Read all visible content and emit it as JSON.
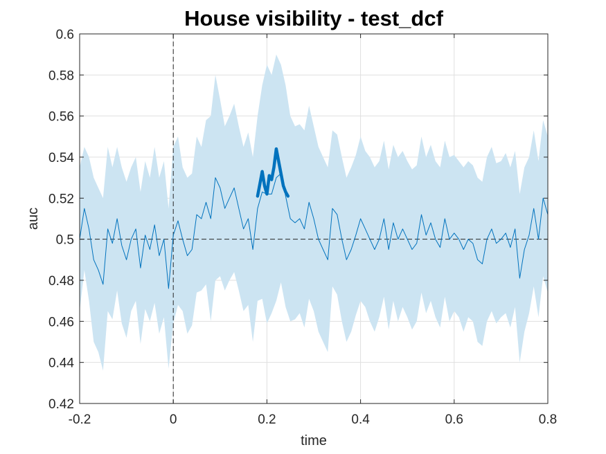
{
  "chart_data": {
    "type": "line",
    "title": "House visibility - test_dcf",
    "xlabel": "time",
    "ylabel": "auc",
    "xlim": [
      -0.2,
      0.8
    ],
    "ylim": [
      0.42,
      0.6
    ],
    "xticks": [
      "-0.2",
      "0",
      "0.2",
      "0.4",
      "0.6",
      "0.8"
    ],
    "yticks": [
      "0.42",
      "0.44",
      "0.46",
      "0.48",
      "0.5",
      "0.52",
      "0.54",
      "0.56",
      "0.58",
      "0.6"
    ],
    "grid": true,
    "reference_lines": {
      "chance_y": 0.5,
      "onset_x": 0
    },
    "colors": {
      "line": "#0072BD",
      "band": "#CCE4F2",
      "significant": "#0072BD",
      "reference": "#262626",
      "grid": "#DFDFDF"
    },
    "series": [
      {
        "role": "mean",
        "x": [
          -0.2,
          -0.19,
          -0.18,
          -0.17,
          -0.16,
          -0.15,
          -0.14,
          -0.13,
          -0.12,
          -0.11,
          -0.1,
          -0.09,
          -0.08,
          -0.07,
          -0.06,
          -0.05,
          -0.04,
          -0.03,
          -0.02,
          -0.01,
          0.0,
          0.01,
          0.02,
          0.03,
          0.04,
          0.05,
          0.06,
          0.07,
          0.08,
          0.09,
          0.1,
          0.11,
          0.12,
          0.13,
          0.14,
          0.15,
          0.16,
          0.17,
          0.18,
          0.19,
          0.2,
          0.21,
          0.22,
          0.23,
          0.24,
          0.25,
          0.26,
          0.27,
          0.28,
          0.29,
          0.3,
          0.31,
          0.32,
          0.33,
          0.34,
          0.35,
          0.36,
          0.37,
          0.38,
          0.39,
          0.4,
          0.41,
          0.42,
          0.43,
          0.44,
          0.45,
          0.46,
          0.47,
          0.48,
          0.49,
          0.5,
          0.51,
          0.52,
          0.53,
          0.54,
          0.55,
          0.56,
          0.57,
          0.58,
          0.59,
          0.6,
          0.61,
          0.62,
          0.63,
          0.64,
          0.65,
          0.66,
          0.67,
          0.68,
          0.69,
          0.7,
          0.71,
          0.72,
          0.73,
          0.74,
          0.75,
          0.76,
          0.77,
          0.78,
          0.79,
          0.8
        ],
        "y": [
          0.5,
          0.515,
          0.505,
          0.49,
          0.485,
          0.478,
          0.505,
          0.498,
          0.51,
          0.497,
          0.49,
          0.5,
          0.505,
          0.486,
          0.502,
          0.495,
          0.507,
          0.492,
          0.5,
          0.476,
          0.502,
          0.509,
          0.5,
          0.492,
          0.495,
          0.512,
          0.51,
          0.518,
          0.51,
          0.53,
          0.525,
          0.515,
          0.52,
          0.525,
          0.515,
          0.505,
          0.51,
          0.495,
          0.515,
          0.523,
          0.522,
          0.522,
          0.53,
          0.532,
          0.521,
          0.51,
          0.508,
          0.51,
          0.505,
          0.518,
          0.51,
          0.5,
          0.495,
          0.49,
          0.515,
          0.512,
          0.5,
          0.49,
          0.495,
          0.502,
          0.51,
          0.505,
          0.5,
          0.495,
          0.5,
          0.51,
          0.495,
          0.508,
          0.5,
          0.505,
          0.5,
          0.495,
          0.498,
          0.512,
          0.502,
          0.508,
          0.5,
          0.496,
          0.51,
          0.5,
          0.503,
          0.5,
          0.495,
          0.5,
          0.498,
          0.49,
          0.488,
          0.5,
          0.505,
          0.498,
          0.5,
          0.503,
          0.496,
          0.505,
          0.481,
          0.495,
          0.502,
          0.515,
          0.5,
          0.52,
          0.512
        ]
      },
      {
        "role": "confidence_band",
        "x": [
          -0.2,
          -0.19,
          -0.18,
          -0.17,
          -0.16,
          -0.15,
          -0.14,
          -0.13,
          -0.12,
          -0.11,
          -0.1,
          -0.09,
          -0.08,
          -0.07,
          -0.06,
          -0.05,
          -0.04,
          -0.03,
          -0.02,
          -0.01,
          0.0,
          0.01,
          0.02,
          0.03,
          0.04,
          0.05,
          0.06,
          0.07,
          0.08,
          0.09,
          0.1,
          0.11,
          0.12,
          0.13,
          0.14,
          0.15,
          0.16,
          0.17,
          0.18,
          0.19,
          0.2,
          0.21,
          0.22,
          0.23,
          0.24,
          0.25,
          0.26,
          0.27,
          0.28,
          0.29,
          0.3,
          0.31,
          0.32,
          0.33,
          0.34,
          0.35,
          0.36,
          0.37,
          0.38,
          0.39,
          0.4,
          0.41,
          0.42,
          0.43,
          0.44,
          0.45,
          0.46,
          0.47,
          0.48,
          0.49,
          0.5,
          0.51,
          0.52,
          0.53,
          0.54,
          0.55,
          0.56,
          0.57,
          0.58,
          0.59,
          0.6,
          0.61,
          0.62,
          0.63,
          0.64,
          0.65,
          0.66,
          0.67,
          0.68,
          0.69,
          0.7,
          0.71,
          0.72,
          0.73,
          0.74,
          0.75,
          0.76,
          0.77,
          0.78,
          0.79,
          0.8
        ],
        "upper": [
          0.535,
          0.545,
          0.54,
          0.53,
          0.525,
          0.52,
          0.545,
          0.535,
          0.545,
          0.535,
          0.528,
          0.535,
          0.54,
          0.523,
          0.538,
          0.53,
          0.545,
          0.53,
          0.538,
          0.515,
          0.545,
          0.55,
          0.535,
          0.53,
          0.532,
          0.55,
          0.545,
          0.558,
          0.56,
          0.58,
          0.568,
          0.555,
          0.56,
          0.566,
          0.555,
          0.545,
          0.552,
          0.54,
          0.56,
          0.575,
          0.585,
          0.58,
          0.59,
          0.585,
          0.575,
          0.56,
          0.555,
          0.556,
          0.553,
          0.565,
          0.555,
          0.545,
          0.54,
          0.535,
          0.553,
          0.551,
          0.54,
          0.53,
          0.535,
          0.541,
          0.55,
          0.543,
          0.54,
          0.535,
          0.538,
          0.548,
          0.534,
          0.546,
          0.54,
          0.543,
          0.538,
          0.534,
          0.536,
          0.55,
          0.54,
          0.546,
          0.538,
          0.535,
          0.548,
          0.54,
          0.541,
          0.538,
          0.535,
          0.538,
          0.536,
          0.53,
          0.528,
          0.54,
          0.545,
          0.537,
          0.538,
          0.542,
          0.535,
          0.543,
          0.522,
          0.535,
          0.54,
          0.553,
          0.538,
          0.558,
          0.55
        ],
        "lower": [
          0.465,
          0.485,
          0.47,
          0.45,
          0.445,
          0.436,
          0.465,
          0.461,
          0.475,
          0.459,
          0.452,
          0.465,
          0.47,
          0.449,
          0.466,
          0.46,
          0.469,
          0.454,
          0.462,
          0.437,
          0.459,
          0.468,
          0.465,
          0.454,
          0.458,
          0.474,
          0.475,
          0.478,
          0.46,
          0.48,
          0.482,
          0.475,
          0.48,
          0.484,
          0.475,
          0.465,
          0.468,
          0.45,
          0.47,
          0.471,
          0.459,
          0.464,
          0.47,
          0.479,
          0.467,
          0.46,
          0.461,
          0.464,
          0.457,
          0.471,
          0.465,
          0.455,
          0.45,
          0.445,
          0.477,
          0.473,
          0.46,
          0.45,
          0.455,
          0.463,
          0.47,
          0.467,
          0.46,
          0.455,
          0.462,
          0.472,
          0.456,
          0.47,
          0.46,
          0.467,
          0.462,
          0.456,
          0.46,
          0.474,
          0.464,
          0.47,
          0.462,
          0.457,
          0.472,
          0.46,
          0.465,
          0.462,
          0.455,
          0.462,
          0.46,
          0.45,
          0.448,
          0.46,
          0.465,
          0.459,
          0.462,
          0.464,
          0.457,
          0.467,
          0.44,
          0.455,
          0.464,
          0.477,
          0.462,
          0.482,
          0.474
        ]
      },
      {
        "role": "significant_segment",
        "x": [
          0.18,
          0.185,
          0.19,
          0.195,
          0.2,
          0.205,
          0.21,
          0.215,
          0.22,
          0.225,
          0.23,
          0.235,
          0.24,
          0.245
        ],
        "y": [
          0.521,
          0.527,
          0.533,
          0.526,
          0.522,
          0.531,
          0.529,
          0.535,
          0.544,
          0.538,
          0.532,
          0.526,
          0.523,
          0.521
        ]
      }
    ]
  }
}
